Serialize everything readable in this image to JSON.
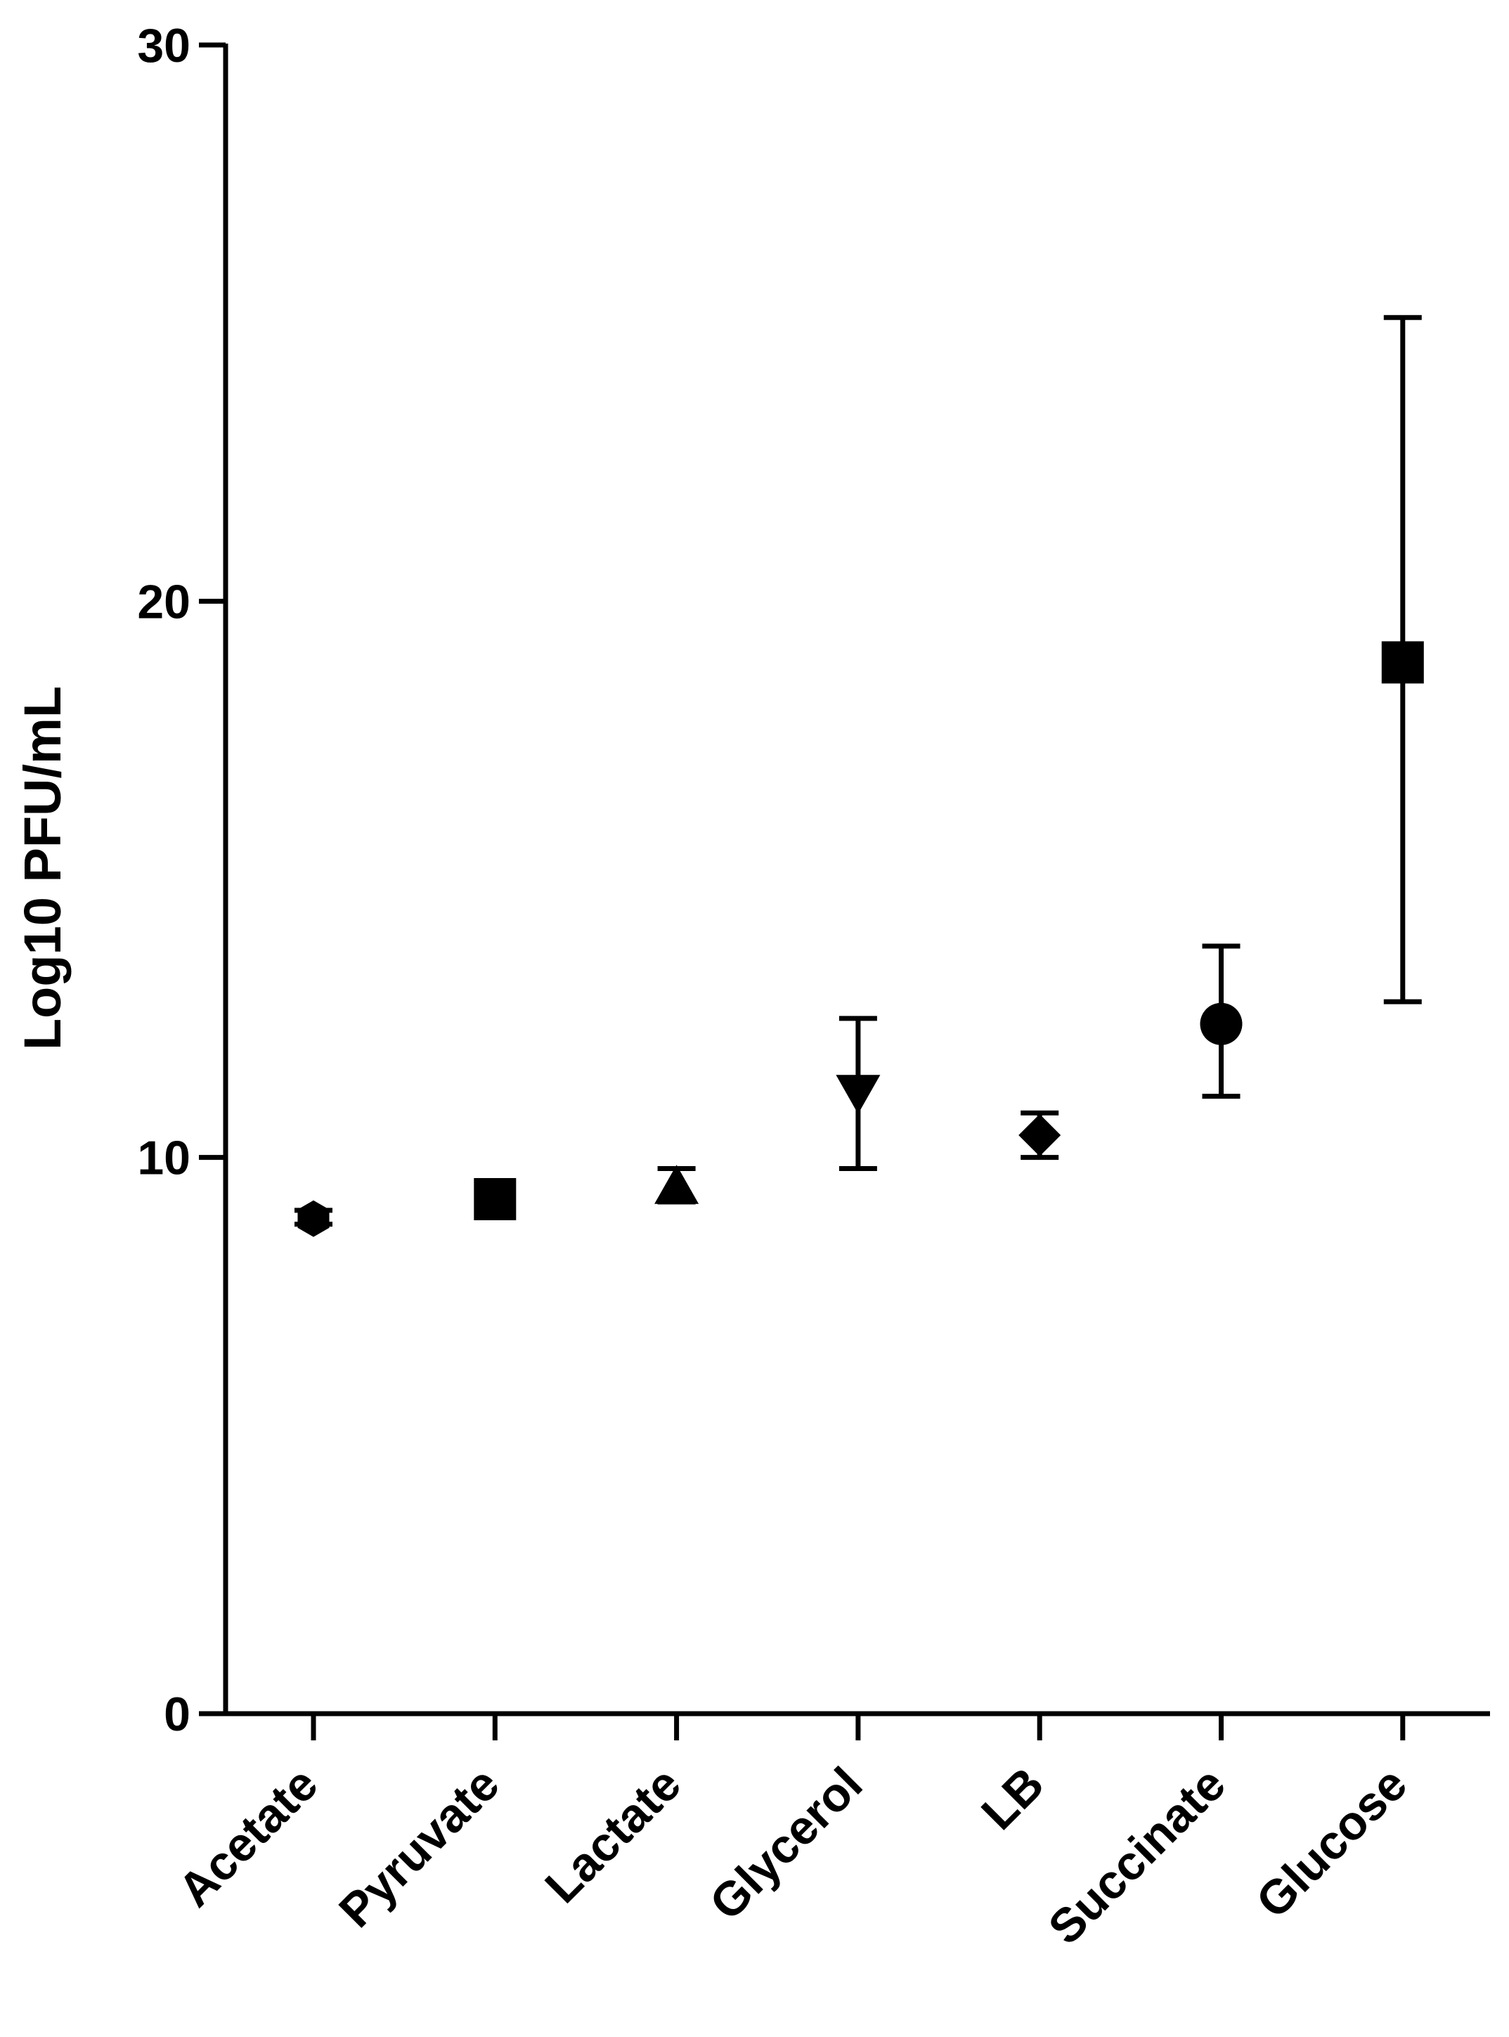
{
  "chart_data": {
    "type": "scatter",
    "title": "",
    "xlabel": "",
    "ylabel": "Log10 PFU/mL",
    "ylim": [
      0,
      30
    ],
    "yticks": [
      0,
      10,
      20,
      30
    ],
    "grid": false,
    "legend": "none",
    "categories": [
      "Acetate",
      "Pyruvate",
      "Lactate",
      "Glycerol",
      "LB",
      "Succinate",
      "Glucose"
    ],
    "points": [
      {
        "category": "Acetate",
        "mean": 8.9,
        "err_low": 8.8,
        "err_high": 9.05,
        "marker": "hexagon"
      },
      {
        "category": "Pyruvate",
        "mean": 9.25,
        "err_low": 9.1,
        "err_high": 9.4,
        "marker": "square"
      },
      {
        "category": "Lactate",
        "mean": 9.45,
        "err_low": 9.2,
        "err_high": 9.8,
        "marker": "triangle-up"
      },
      {
        "category": "Glycerol",
        "mean": 11.2,
        "err_low": 9.8,
        "err_high": 12.5,
        "marker": "triangle-down"
      },
      {
        "category": "LB",
        "mean": 10.4,
        "err_low": 10.0,
        "err_high": 10.8,
        "marker": "diamond"
      },
      {
        "category": "Succinate",
        "mean": 12.4,
        "err_low": 11.1,
        "err_high": 13.8,
        "marker": "circle"
      },
      {
        "category": "Glucose",
        "mean": 18.9,
        "err_low": 12.8,
        "err_high": 25.1,
        "marker": "square"
      }
    ],
    "colors": {
      "marker": "#000000",
      "axis": "#000000"
    }
  }
}
